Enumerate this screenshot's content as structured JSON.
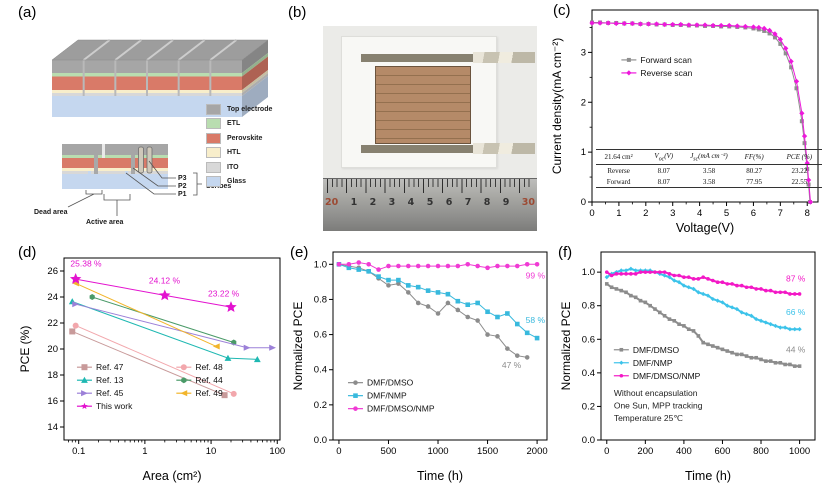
{
  "panels": {
    "a": {
      "label": "(a)"
    },
    "b": {
      "label": "(b)"
    },
    "c": {
      "label": "(c)"
    },
    "d": {
      "label": "(d)"
    },
    "e": {
      "label": "(e)"
    },
    "f": {
      "label": "(f)"
    }
  },
  "schematic": {
    "layers": [
      {
        "name": "Top electrode",
        "color": "#a6a6a6"
      },
      {
        "name": "ETL",
        "color": "#b9ddb0"
      },
      {
        "name": "Perovskite",
        "color": "#d97a68"
      },
      {
        "name": "HTL",
        "color": "#f8eecb"
      },
      {
        "name": "ITO",
        "color": "#d8d8d8"
      },
      {
        "name": "Glass",
        "color": "#c5d7ef"
      }
    ],
    "annotations": {
      "dead_area": "Dead area",
      "active_area": "Active area",
      "scribes": "Scribes",
      "p1": "P1",
      "p2": "P2",
      "p3": "P3"
    }
  },
  "photo": {
    "ruler_numbers": [
      {
        "text": "20",
        "color": "#9c4a33"
      },
      {
        "text": "1",
        "color": "#333333"
      },
      {
        "text": "2",
        "color": "#333333"
      },
      {
        "text": "3",
        "color": "#333333"
      },
      {
        "text": "4",
        "color": "#333333"
      },
      {
        "text": "5",
        "color": "#333333"
      },
      {
        "text": "6",
        "color": "#333333"
      },
      {
        "text": "7",
        "color": "#333333"
      },
      {
        "text": "8",
        "color": "#333333"
      },
      {
        "text": "9",
        "color": "#333333"
      },
      {
        "text": "30",
        "color": "#9c4a33"
      }
    ]
  },
  "chart_data": [
    {
      "panel": "c",
      "type": "line",
      "xlabel": "Voltage(V)",
      "ylabel": "Current density(mA cm⁻²)",
      "xlim": [
        0,
        8.4
      ],
      "ylim": [
        0,
        3.85
      ],
      "xticks": [
        0,
        1,
        2,
        3,
        4,
        5,
        6,
        7,
        8
      ],
      "yticks": [
        0,
        1,
        2,
        3
      ],
      "xminor": 0.5,
      "yminor": 0.5,
      "legend": {
        "fx": 0.13,
        "fy": 0.26,
        "cols": 1
      },
      "series": [
        {
          "name": "Forward scan",
          "color": "#8f8f8f",
          "marker": "square",
          "ms": 2,
          "x": [
            0,
            0.3,
            0.6,
            0.9,
            1.2,
            1.5,
            1.8,
            2.1,
            2.4,
            2.7,
            3.0,
            3.3,
            3.6,
            3.9,
            4.2,
            4.5,
            4.8,
            5.1,
            5.4,
            5.7,
            6.0,
            6.2,
            6.4,
            6.6,
            6.8,
            7.0,
            7.2,
            7.4,
            7.6,
            7.8,
            7.9,
            8.0,
            8.05,
            8.1
          ],
          "y": [
            3.6,
            3.6,
            3.59,
            3.59,
            3.58,
            3.58,
            3.57,
            3.57,
            3.56,
            3.56,
            3.55,
            3.55,
            3.54,
            3.54,
            3.53,
            3.53,
            3.52,
            3.52,
            3.51,
            3.5,
            3.48,
            3.46,
            3.43,
            3.38,
            3.3,
            3.17,
            2.98,
            2.7,
            2.28,
            1.62,
            1.18,
            0.66,
            0.35,
            0.0
          ]
        },
        {
          "name": "Reverse scan",
          "color": "#ee18dc",
          "marker": "diamond",
          "ms": 2.2,
          "x": [
            0,
            0.3,
            0.6,
            0.9,
            1.2,
            1.5,
            1.8,
            2.1,
            2.4,
            2.7,
            3.0,
            3.3,
            3.6,
            3.9,
            4.2,
            4.5,
            4.8,
            5.1,
            5.4,
            5.7,
            6.0,
            6.2,
            6.4,
            6.6,
            6.8,
            7.0,
            7.2,
            7.4,
            7.6,
            7.8,
            7.9,
            8.0,
            8.05,
            8.12
          ],
          "y": [
            3.59,
            3.59,
            3.59,
            3.58,
            3.58,
            3.58,
            3.57,
            3.57,
            3.57,
            3.56,
            3.56,
            3.56,
            3.55,
            3.55,
            3.55,
            3.54,
            3.54,
            3.54,
            3.53,
            3.52,
            3.51,
            3.5,
            3.48,
            3.44,
            3.37,
            3.26,
            3.08,
            2.82,
            2.42,
            1.78,
            1.32,
            0.78,
            0.44,
            0.0
          ]
        }
      ],
      "inset_table": {
        "headers": [
          "21.64 cm²",
          "V_oc_(V)",
          "J_sc_(mA cm⁻²)",
          "FF(%)",
          "PCE (%)"
        ],
        "rows": [
          [
            "Reverse",
            "8.07",
            "3.58",
            "80.27",
            "23.22"
          ],
          [
            "Forward",
            "8.07",
            "3.58",
            "77.95",
            "22.55"
          ]
        ]
      }
    },
    {
      "panel": "d",
      "type": "scatter",
      "xlog": true,
      "xlabel": "Area (cm²)",
      "ylabel": "PCE (%)",
      "xlim": [
        0.06,
        110
      ],
      "ylim": [
        13,
        27
      ],
      "xticks": [
        0.1,
        1,
        10,
        100
      ],
      "xtick_labels": [
        "0.1",
        "1",
        "10",
        "100"
      ],
      "yticks": [
        14,
        16,
        18,
        20,
        22,
        24,
        26
      ],
      "legend": {
        "fx": 0.06,
        "fy": 0.6,
        "cols": 2,
        "colw": 0.46
      },
      "series": [
        {
          "name": "Ref. 47",
          "color": "#c89a9a",
          "marker": "square",
          "ms": 3,
          "x": [
            0.08,
            16
          ],
          "y": [
            21.35,
            16.45
          ]
        },
        {
          "name": "Ref. 48",
          "color": "#f2a7ac",
          "marker": "circle",
          "ms": 3,
          "x": [
            0.09,
            22
          ],
          "y": [
            21.8,
            16.55
          ]
        },
        {
          "name": "Ref. 13",
          "color": "#1fb8b2",
          "marker": "tri-up",
          "ms": 3.4,
          "x": [
            0.08,
            18,
            50
          ],
          "y": [
            23.65,
            19.3,
            19.2
          ]
        },
        {
          "name": "Ref. 44",
          "color": "#4a9a68",
          "marker": "hex",
          "ms": 3,
          "x": [
            0.16,
            22
          ],
          "y": [
            24.0,
            20.5
          ]
        },
        {
          "name": "Ref. 45",
          "color": "#9c80d8",
          "marker": "tri-right",
          "ms": 3.4,
          "x": [
            0.09,
            35,
            85
          ],
          "y": [
            23.45,
            20.1,
            20.1
          ]
        },
        {
          "name": "Ref. 49",
          "color": "#f2b52b",
          "marker": "tri-left",
          "ms": 3.4,
          "x": [
            0.09,
            12
          ],
          "y": [
            25.05,
            20.2
          ]
        },
        {
          "name": "This work",
          "color": "#e312cf",
          "marker": "star",
          "ms": 6,
          "x": [
            0.09,
            2,
            20
          ],
          "y": [
            25.38,
            24.12,
            23.22
          ]
        }
      ],
      "annotations": [
        {
          "text": "25.38 %",
          "x": 0.075,
          "y": 26.35,
          "color": "#e312cf",
          "anchor": "start"
        },
        {
          "text": "24.12 %",
          "x": 1.15,
          "y": 25.05,
          "color": "#e312cf",
          "anchor": "start"
        },
        {
          "text": "23.22 %",
          "x": 9.0,
          "y": 24.05,
          "color": "#e312cf",
          "anchor": "start"
        }
      ]
    },
    {
      "panel": "e",
      "type": "line",
      "xlabel": "Time (h)",
      "ylabel": "Normalized PCE",
      "xlim": [
        -60,
        2100
      ],
      "ylim": [
        0,
        1.07
      ],
      "xticks": [
        0,
        500,
        1000,
        1500,
        2000
      ],
      "yticks": [
        0.0,
        0.2,
        0.4,
        0.6,
        0.8,
        1.0
      ],
      "ytick_labels": [
        "0.0",
        "0.2",
        "0.4",
        "0.6",
        "0.8",
        "1.0"
      ],
      "legend": {
        "fx": 0.07,
        "fy": 0.695,
        "cols": 1
      },
      "series": [
        {
          "name": "DMF/DMSO",
          "color": "#8c8c8c",
          "marker": "circle",
          "ms": 2.3,
          "x": [
            0,
            100,
            200,
            300,
            400,
            500,
            600,
            700,
            800,
            900,
            1000,
            1100,
            1200,
            1300,
            1400,
            1500,
            1600,
            1700,
            1800,
            1900
          ],
          "y": [
            1.0,
            0.99,
            0.98,
            0.96,
            0.92,
            0.88,
            0.89,
            0.84,
            0.78,
            0.76,
            0.72,
            0.78,
            0.74,
            0.7,
            0.68,
            0.6,
            0.59,
            0.52,
            0.48,
            0.47
          ]
        },
        {
          "name": "DMF/NMP",
          "color": "#38b9dd",
          "marker": "square",
          "ms": 2.3,
          "x": [
            0,
            100,
            200,
            300,
            400,
            500,
            600,
            700,
            800,
            900,
            1000,
            1100,
            1200,
            1300,
            1400,
            1500,
            1600,
            1700,
            1800,
            1900,
            2000
          ],
          "y": [
            1.0,
            0.98,
            0.97,
            0.96,
            0.93,
            0.91,
            0.91,
            0.88,
            0.87,
            0.85,
            0.84,
            0.83,
            0.79,
            0.77,
            0.78,
            0.73,
            0.7,
            0.72,
            0.66,
            0.61,
            0.58
          ]
        },
        {
          "name": "DMF/DMSO/NMP",
          "color": "#f03ad4",
          "marker": "circle",
          "ms": 2.3,
          "x": [
            0,
            100,
            200,
            300,
            400,
            500,
            600,
            700,
            800,
            900,
            1000,
            1100,
            1200,
            1300,
            1400,
            1500,
            1600,
            1700,
            1800,
            1900,
            2000
          ],
          "y": [
            1.0,
            1.0,
            1.01,
            1.0,
            0.97,
            0.99,
            0.99,
            0.99,
            0.99,
            0.99,
            0.99,
            0.99,
            0.99,
            1.0,
            0.99,
            0.98,
            0.99,
            0.99,
            0.99,
            1.0,
            1.0
          ]
        }
      ],
      "annotations": [
        {
          "text": "99 %",
          "x": 2080,
          "y": 0.92,
          "color": "#f03ad4",
          "anchor": "end"
        },
        {
          "text": "58 %",
          "x": 2080,
          "y": 0.665,
          "color": "#38b9dd",
          "anchor": "end"
        },
        {
          "text": "47 %",
          "x": 1840,
          "y": 0.41,
          "color": "#8c8c8c",
          "anchor": "end"
        }
      ]
    },
    {
      "panel": "f",
      "type": "line",
      "xlabel": "Time (h)",
      "ylabel": "Normalized PCE",
      "xlim": [
        -30,
        1080
      ],
      "ylim": [
        0,
        1.12
      ],
      "xticks": [
        0,
        200,
        400,
        600,
        800,
        1000
      ],
      "yticks": [
        0.0,
        0.2,
        0.4,
        0.6,
        0.8,
        1.0
      ],
      "ytick_labels": [
        "0.0",
        "0.2",
        "0.4",
        "0.6",
        "0.8",
        "1.0"
      ],
      "legend": {
        "fx": 0.06,
        "fy": 0.52,
        "cols": 1
      },
      "note": {
        "fx": 0.06,
        "fy": 0.765,
        "lines": [
          "Without encapsulation",
          "One Sun, MPP tracking",
          "Temperature 25℃"
        ]
      },
      "series": [
        {
          "name": "DMF/DMSO",
          "color": "#8c8c8c",
          "marker": "square",
          "ms": 1.8,
          "lw": 2,
          "x": [
            0,
            25,
            50,
            75,
            100,
            125,
            150,
            175,
            200,
            225,
            250,
            275,
            300,
            325,
            350,
            375,
            400,
            425,
            450,
            475,
            500,
            525,
            550,
            575,
            600,
            625,
            650,
            675,
            700,
            725,
            750,
            775,
            800,
            825,
            850,
            875,
            900,
            925,
            950,
            975,
            1000
          ],
          "y": [
            0.93,
            0.91,
            0.9,
            0.89,
            0.88,
            0.86,
            0.85,
            0.83,
            0.82,
            0.8,
            0.78,
            0.76,
            0.74,
            0.72,
            0.71,
            0.69,
            0.68,
            0.66,
            0.65,
            0.62,
            0.58,
            0.57,
            0.56,
            0.55,
            0.54,
            0.53,
            0.52,
            0.51,
            0.51,
            0.5,
            0.49,
            0.49,
            0.48,
            0.47,
            0.47,
            0.46,
            0.46,
            0.45,
            0.45,
            0.44,
            0.44
          ]
        },
        {
          "name": "DMF/NMP",
          "color": "#3cc3ea",
          "marker": "diamond",
          "ms": 1.8,
          "lw": 2,
          "x": [
            0,
            25,
            50,
            75,
            100,
            125,
            150,
            175,
            200,
            225,
            250,
            275,
            300,
            325,
            350,
            375,
            400,
            425,
            450,
            475,
            500,
            525,
            550,
            575,
            600,
            625,
            650,
            675,
            700,
            725,
            750,
            775,
            800,
            825,
            850,
            875,
            900,
            925,
            950,
            975,
            1000
          ],
          "y": [
            0.97,
            0.99,
            1.0,
            1.01,
            1.01,
            1.02,
            1.01,
            1.01,
            1.01,
            1.01,
            1.0,
            0.99,
            0.98,
            0.97,
            0.95,
            0.94,
            0.92,
            0.91,
            0.9,
            0.88,
            0.87,
            0.86,
            0.84,
            0.83,
            0.82,
            0.8,
            0.79,
            0.78,
            0.76,
            0.75,
            0.74,
            0.72,
            0.71,
            0.7,
            0.69,
            0.68,
            0.67,
            0.67,
            0.66,
            0.66,
            0.66
          ]
        },
        {
          "name": "DMF/DMSO/NMP",
          "color": "#f318c6",
          "marker": "circle",
          "ms": 1.8,
          "lw": 2,
          "x": [
            0,
            25,
            50,
            75,
            100,
            125,
            150,
            175,
            200,
            225,
            250,
            275,
            300,
            325,
            350,
            375,
            400,
            425,
            450,
            475,
            500,
            525,
            550,
            575,
            600,
            625,
            650,
            675,
            700,
            725,
            750,
            775,
            800,
            825,
            850,
            875,
            900,
            925,
            950,
            975,
            1000
          ],
          "y": [
            1.0,
            0.98,
            0.99,
            0.99,
            0.99,
            0.99,
            0.99,
            1.0,
            1.0,
            1.0,
            1.0,
            1.0,
            1.0,
            0.99,
            0.98,
            0.98,
            0.97,
            0.97,
            0.96,
            0.96,
            0.97,
            0.96,
            0.95,
            0.94,
            0.94,
            0.93,
            0.93,
            0.92,
            0.92,
            0.91,
            0.91,
            0.9,
            0.9,
            0.89,
            0.89,
            0.88,
            0.88,
            0.88,
            0.87,
            0.87,
            0.87
          ]
        }
      ],
      "annotations": [
        {
          "text": "87 %",
          "x": 1030,
          "y": 0.945,
          "color": "#f318c6",
          "anchor": "end"
        },
        {
          "text": "66 %",
          "x": 1030,
          "y": 0.745,
          "color": "#3cc3ea",
          "anchor": "end"
        },
        {
          "text": "44 %",
          "x": 1030,
          "y": 0.52,
          "color": "#8c8c8c",
          "anchor": "end"
        }
      ]
    }
  ]
}
